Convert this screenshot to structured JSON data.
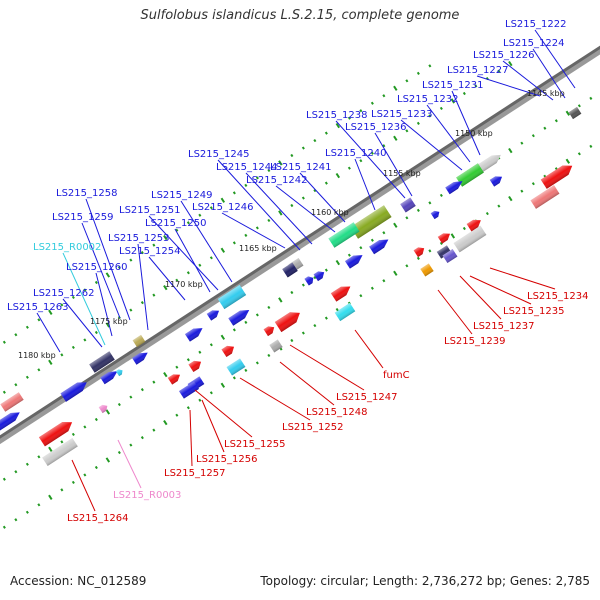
{
  "title": "Sulfolobus islandicus L.S.2.15, complete genome",
  "footer": {
    "accession": "Accession: NC_012589",
    "topology": "Topology: circular; Length: 2,736,272 bp; Genes: 2,785"
  },
  "colors": {
    "forward_label": "#1a1adb",
    "reverse_label": "#d40000",
    "rna_cyan": "#33ccdd",
    "rna_pink": "#ee88cc",
    "backbone": "#777777",
    "tick": "#229922"
  },
  "scale_labels": [
    "1145 kbp",
    "1150 kbp",
    "1155 kbp",
    "1160 kbp",
    "1165 kbp",
    "1170 kbp",
    "1175 kbp",
    "1180 kbp"
  ],
  "forward_labels": [
    "LS215_1222",
    "LS215_1224",
    "LS215_1226",
    "LS215_1227",
    "LS215_1231",
    "LS215_1232",
    "LS215_1233",
    "LS215_1238",
    "LS215_1236",
    "LS215_1240",
    "LS215_1241",
    "LS215_1242",
    "LS215_1245",
    "LS215_1244",
    "LS215_1246",
    "LS215_1249",
    "LS215_1251",
    "LS215_1250",
    "LS215_1253",
    "LS215_1254",
    "LS215_1258",
    "LS215_1259",
    "LS215_R0002",
    "LS215_1260",
    "LS215_1262",
    "LS215_1263"
  ],
  "reverse_labels": [
    "LS215_1234",
    "LS215_1235",
    "LS215_1237",
    "LS215_1239",
    "fumC",
    "LS215_1247",
    "LS215_1248",
    "LS215_1252",
    "LS215_1255",
    "LS215_1256",
    "LS215_1257",
    "LS215_R0003",
    "LS215_1264"
  ]
}
